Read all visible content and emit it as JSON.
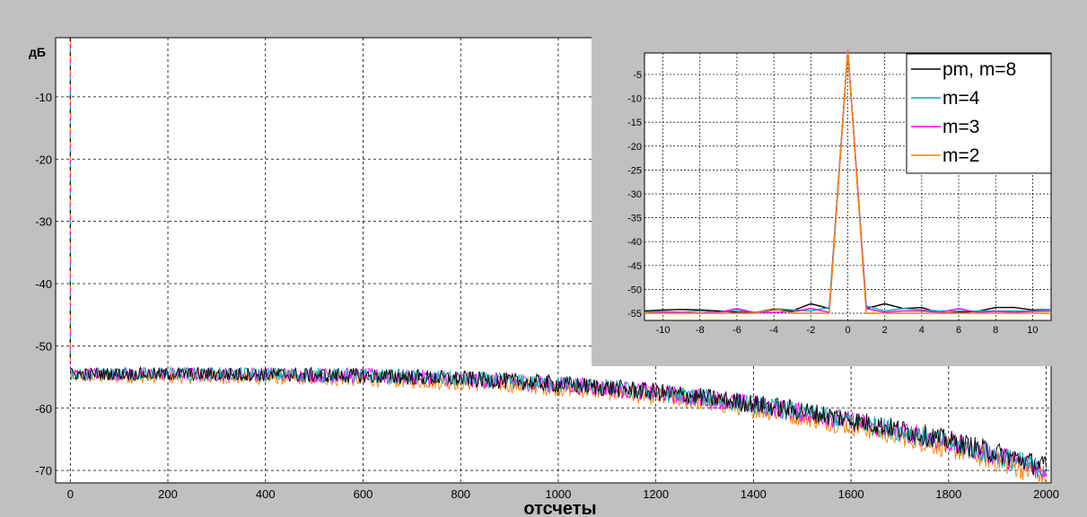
{
  "colors": {
    "figure_bg": "#c0c0c0",
    "axes_bg": "#ffffff",
    "grid": "#000000",
    "pm_m8": "#000000",
    "m4": "#00b0b0",
    "m3": "#ff00ff",
    "m2": "#ff8000"
  },
  "chart_data": [
    {
      "type": "line",
      "xlabel": "отсчеты",
      "ylabel": "дБ",
      "xlim": [
        -30,
        2010
      ],
      "ylim": [
        -72,
        -0.5
      ],
      "xticks": [
        0,
        200,
        400,
        600,
        800,
        1000,
        1200,
        1400,
        1600,
        1800,
        2000
      ],
      "yticks": [
        -10,
        -20,
        -30,
        -40,
        -50,
        -60,
        -70
      ],
      "grid": true,
      "line_style": "noisy spectra: peak at x=0, floor about -54 dB falling to about -70 dB near x=2000",
      "series": [
        {
          "name": "pm, m=8",
          "color": "#000000",
          "peak_at": 0,
          "floor_start_db": -54.5,
          "floor_end_db": -69.5
        },
        {
          "name": "m=4",
          "color": "#00b0b0",
          "peak_at": 0,
          "floor_start_db": -54.5,
          "floor_end_db": -70
        },
        {
          "name": "m=3",
          "color": "#ff00ff",
          "peak_at": 0,
          "floor_start_db": -54.5,
          "floor_end_db": -70
        },
        {
          "name": "m=2",
          "color": "#ff8000",
          "peak_at": 0,
          "floor_start_db": -55,
          "floor_end_db": -71
        }
      ]
    },
    {
      "type": "line",
      "xlim": [
        -11,
        11
      ],
      "ylim": [
        -56.5,
        -0.5
      ],
      "xticks": [
        -10,
        -8,
        -6,
        -4,
        -2,
        0,
        2,
        4,
        6,
        8,
        10
      ],
      "yticks": [
        -5,
        -10,
        -15,
        -20,
        -25,
        -30,
        -35,
        -40,
        -45,
        -50,
        -55
      ],
      "grid": true,
      "legend": "top-right",
      "x": [
        -11,
        -10,
        -9,
        -8,
        -7,
        -6,
        -5,
        -4,
        -3,
        -2,
        -1,
        0,
        1,
        2,
        3,
        4,
        5,
        6,
        7,
        8,
        9,
        10,
        11
      ],
      "series": [
        {
          "name": "pm, m=8",
          "color": "#000000",
          "values": [
            -54.5,
            -54.3,
            -54.2,
            -54.3,
            -54.5,
            -54.8,
            -54.9,
            -54.2,
            -54.5,
            -53.0,
            -54.0,
            0,
            -54.0,
            -53.0,
            -54.0,
            -53.8,
            -55.0,
            -54.8,
            -54.6,
            -53.8,
            -53.8,
            -54.3,
            -54.2
          ]
        },
        {
          "name": "m=4",
          "color": "#00b0b0",
          "values": [
            -54.8,
            -54.6,
            -54.8,
            -54.5,
            -54.8,
            -54.4,
            -54.8,
            -54.0,
            -54.3,
            -54.5,
            -53.8,
            0,
            -53.5,
            -54.5,
            -54.0,
            -54.3,
            -54.5,
            -54.5,
            -54.5,
            -54.5,
            -54.5,
            -54.5,
            -54.2
          ]
        },
        {
          "name": "m=3",
          "color": "#ff00ff",
          "values": [
            -55.0,
            -54.8,
            -54.8,
            -55.0,
            -54.8,
            -54.0,
            -54.9,
            -54.8,
            -54.7,
            -54.0,
            -54.8,
            0,
            -54.0,
            -54.8,
            -54.5,
            -54.5,
            -54.8,
            -54.0,
            -54.8,
            -54.6,
            -54.8,
            -54.6,
            -54.5
          ]
        },
        {
          "name": "m=2",
          "color": "#ff8000",
          "values": [
            -55.0,
            -55.0,
            -55.0,
            -55.0,
            -55.0,
            -55.0,
            -55.0,
            -54.0,
            -55.0,
            -55.0,
            -55.0,
            0,
            -55.0,
            -55.0,
            -55.0,
            -55.0,
            -55.0,
            -55.0,
            -55.0,
            -55.0,
            -55.0,
            -55.0,
            -55.0
          ]
        }
      ]
    }
  ]
}
